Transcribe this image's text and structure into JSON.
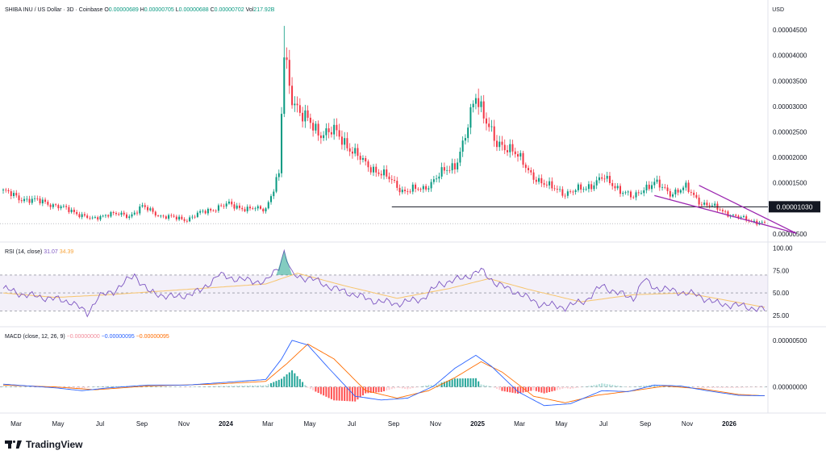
{
  "header": {
    "symbol": "SHIBA INU / US Dollar · 3D · Coinbase",
    "open_label": "O",
    "open": "0.00000689",
    "high_label": "H",
    "high": "0.00000705",
    "low_label": "L",
    "low": "0.00000688",
    "close_label": "C",
    "close": "0.00000702",
    "vol_label": "Vol",
    "vol": "217.92B"
  },
  "price_axis": {
    "currency": "USD"
  },
  "brand": {
    "name": "TradingView"
  },
  "colors": {
    "up": "#089981",
    "down": "#f23645",
    "rsi": "#7e57c2",
    "rsi_ma": "#f7c46c",
    "macd": "#2962ff",
    "signal": "#ff6d00",
    "wedge": "#9c27b0",
    "support": "#131722"
  },
  "rsi_legend": {
    "label": "RSI (14, close)",
    "value": "31.07",
    "ma_value": "34.39"
  },
  "macd_legend": {
    "label": "MACD (close, 12, 26, 9)",
    "hist": "−0.00000000",
    "macd": "−0.00000095",
    "signal": "−0.00000095"
  },
  "chart_data": [
    {
      "type": "candlestick",
      "title": "SHIBA INU / US Dollar · 3D · Coinbase",
      "x_ticks": [
        "Mar",
        "May",
        "Jul",
        "Sep",
        "Nov",
        "2024",
        "Mar",
        "May",
        "Jul",
        "Sep",
        "Nov",
        "2025",
        "Mar",
        "May",
        "Jul",
        "Sep",
        "Nov",
        "2026"
      ],
      "y_ticks": [
        "0.00000500",
        "0.00001500",
        "0.00002000",
        "0.00002500",
        "0.00003000",
        "0.00003500",
        "0.00004000",
        "0.00004500"
      ],
      "ylim": [
        3.7e-06,
        4.74e-05
      ],
      "price_anchors": [
        [
          0,
          1.34e-05
        ],
        [
          6,
          1.2e-05
        ],
        [
          16,
          1.12e-05
        ],
        [
          26,
          9.5e-06
        ],
        [
          34,
          7.8e-06
        ],
        [
          40,
          9e-06
        ],
        [
          48,
          8.5e-06
        ],
        [
          53,
          1.03e-05
        ],
        [
          60,
          8.5e-06
        ],
        [
          70,
          7.8e-06
        ],
        [
          76,
          9.3e-06
        ],
        [
          86,
          1.08e-05
        ],
        [
          93,
          9.8e-06
        ],
        [
          100,
          1e-05
        ],
        [
          105,
          1.65e-05
        ],
        [
          107,
          4e-05
        ],
        [
          110,
          3.2e-05
        ],
        [
          114,
          2.8e-05
        ],
        [
          120,
          2.5e-05
        ],
        [
          126,
          2.5e-05
        ],
        [
          132,
          2.2e-05
        ],
        [
          138,
          1.85e-05
        ],
        [
          144,
          1.7e-05
        ],
        [
          152,
          1.35e-05
        ],
        [
          160,
          1.38e-05
        ],
        [
          166,
          1.65e-05
        ],
        [
          172,
          1.85e-05
        ],
        [
          176,
          2.4e-05
        ],
        [
          180,
          3.2e-05
        ],
        [
          183,
          2.9e-05
        ],
        [
          188,
          2.2e-05
        ],
        [
          194,
          2.2e-05
        ],
        [
          200,
          1.7e-05
        ],
        [
          208,
          1.42e-05
        ],
        [
          214,
          1.3e-05
        ],
        [
          222,
          1.4e-05
        ],
        [
          228,
          1.6e-05
        ],
        [
          234,
          1.4e-05
        ],
        [
          240,
          1.2e-05
        ],
        [
          244,
          1.4e-05
        ],
        [
          248,
          1.5e-05
        ],
        [
          254,
          1.3e-05
        ],
        [
          260,
          1.4e-05
        ],
        [
          266,
          1.1e-05
        ],
        [
          272,
          1e-05
        ],
        [
          278,
          8.5e-06
        ],
        [
          286,
          7.4e-06
        ],
        [
          290,
          7e-06
        ]
      ],
      "support_line": 1.03e-05,
      "support_label": "0.00001030",
      "wedge": {
        "upper": [
          [
            265,
            1.45e-05
          ],
          [
            302,
            5.1e-06
          ]
        ],
        "lower": [
          [
            248,
            1.25e-05
          ],
          [
            302,
            5.1e-06
          ]
        ]
      }
    },
    {
      "type": "line",
      "name": "RSI (14, close)",
      "y_ticks": [
        "25.00",
        "50.00",
        "75.00",
        "100.00"
      ],
      "ylim": [
        15,
        105
      ],
      "bands": [
        30,
        50,
        70
      ],
      "rsi_anchors": [
        [
          0,
          55
        ],
        [
          8,
          48
        ],
        [
          18,
          44
        ],
        [
          26,
          40
        ],
        [
          32,
          27
        ],
        [
          36,
          45
        ],
        [
          42,
          52
        ],
        [
          50,
          70
        ],
        [
          56,
          50
        ],
        [
          66,
          45
        ],
        [
          75,
          52
        ],
        [
          82,
          70
        ],
        [
          90,
          65
        ],
        [
          100,
          62
        ],
        [
          105,
          80
        ],
        [
          107,
          96
        ],
        [
          110,
          70
        ],
        [
          118,
          65
        ],
        [
          126,
          55
        ],
        [
          134,
          48
        ],
        [
          140,
          42
        ],
        [
          150,
          38
        ],
        [
          160,
          44
        ],
        [
          166,
          60
        ],
        [
          172,
          64
        ],
        [
          178,
          70
        ],
        [
          182,
          75
        ],
        [
          188,
          60
        ],
        [
          196,
          50
        ],
        [
          204,
          38
        ],
        [
          214,
          34
        ],
        [
          222,
          42
        ],
        [
          228,
          58
        ],
        [
          234,
          50
        ],
        [
          240,
          44
        ],
        [
          244,
          65
        ],
        [
          248,
          56
        ],
        [
          256,
          52
        ],
        [
          264,
          48
        ],
        [
          272,
          38
        ],
        [
          280,
          36
        ],
        [
          290,
          31
        ]
      ],
      "ma_anchors": [
        [
          0,
          50
        ],
        [
          20,
          45
        ],
        [
          40,
          48
        ],
        [
          60,
          52
        ],
        [
          80,
          56
        ],
        [
          100,
          60
        ],
        [
          112,
          72
        ],
        [
          130,
          58
        ],
        [
          150,
          44
        ],
        [
          170,
          55
        ],
        [
          185,
          66
        ],
        [
          200,
          54
        ],
        [
          220,
          40
        ],
        [
          240,
          48
        ],
        [
          260,
          50
        ],
        [
          290,
          34
        ]
      ]
    },
    {
      "type": "line",
      "name": "MACD (close, 12, 26, 9)",
      "y_ticks": [
        "0.00000000",
        "0.00000500"
      ],
      "ylim": [
        -2.8e-06,
        6.2e-06
      ],
      "macd_anchors": [
        [
          0,
          3e-07
        ],
        [
          10,
          1e-07
        ],
        [
          20,
          -1e-07
        ],
        [
          30,
          -4e-07
        ],
        [
          40,
          -1e-07
        ],
        [
          55,
          2e-07
        ],
        [
          70,
          2e-07
        ],
        [
          85,
          5e-07
        ],
        [
          100,
          8e-07
        ],
        [
          106,
          3e-06
        ],
        [
          110,
          5e-06
        ],
        [
          116,
          4.5e-06
        ],
        [
          124,
          2e-06
        ],
        [
          134,
          -1e-06
        ],
        [
          144,
          -1.4e-06
        ],
        [
          154,
          -1.2e-06
        ],
        [
          164,
          1e-07
        ],
        [
          172,
          2e-06
        ],
        [
          180,
          3.4e-06
        ],
        [
          186,
          2.2e-06
        ],
        [
          196,
          -5e-07
        ],
        [
          206,
          -2e-06
        ],
        [
          216,
          -1.8e-06
        ],
        [
          228,
          -4e-07
        ],
        [
          238,
          -5e-07
        ],
        [
          248,
          2e-07
        ],
        [
          258,
          1e-07
        ],
        [
          268,
          -4e-07
        ],
        [
          280,
          -9e-07
        ],
        [
          290,
          -9.5e-07
        ]
      ],
      "signal_anchors": [
        [
          0,
          2e-07
        ],
        [
          20,
          0.0
        ],
        [
          35,
          -3e-07
        ],
        [
          55,
          1e-07
        ],
        [
          80,
          3e-07
        ],
        [
          100,
          6e-07
        ],
        [
          108,
          2.5e-06
        ],
        [
          116,
          4.6e-06
        ],
        [
          126,
          3e-06
        ],
        [
          138,
          -4e-07
        ],
        [
          150,
          -1.2e-06
        ],
        [
          162,
          -4e-07
        ],
        [
          172,
          1e-06
        ],
        [
          182,
          2.7e-06
        ],
        [
          190,
          1.6e-06
        ],
        [
          202,
          -1e-06
        ],
        [
          214,
          -1.7e-06
        ],
        [
          226,
          -9e-07
        ],
        [
          240,
          -4e-07
        ],
        [
          252,
          1e-07
        ],
        [
          266,
          -2e-07
        ],
        [
          280,
          -8e-07
        ],
        [
          290,
          -9.5e-07
        ]
      ]
    }
  ]
}
